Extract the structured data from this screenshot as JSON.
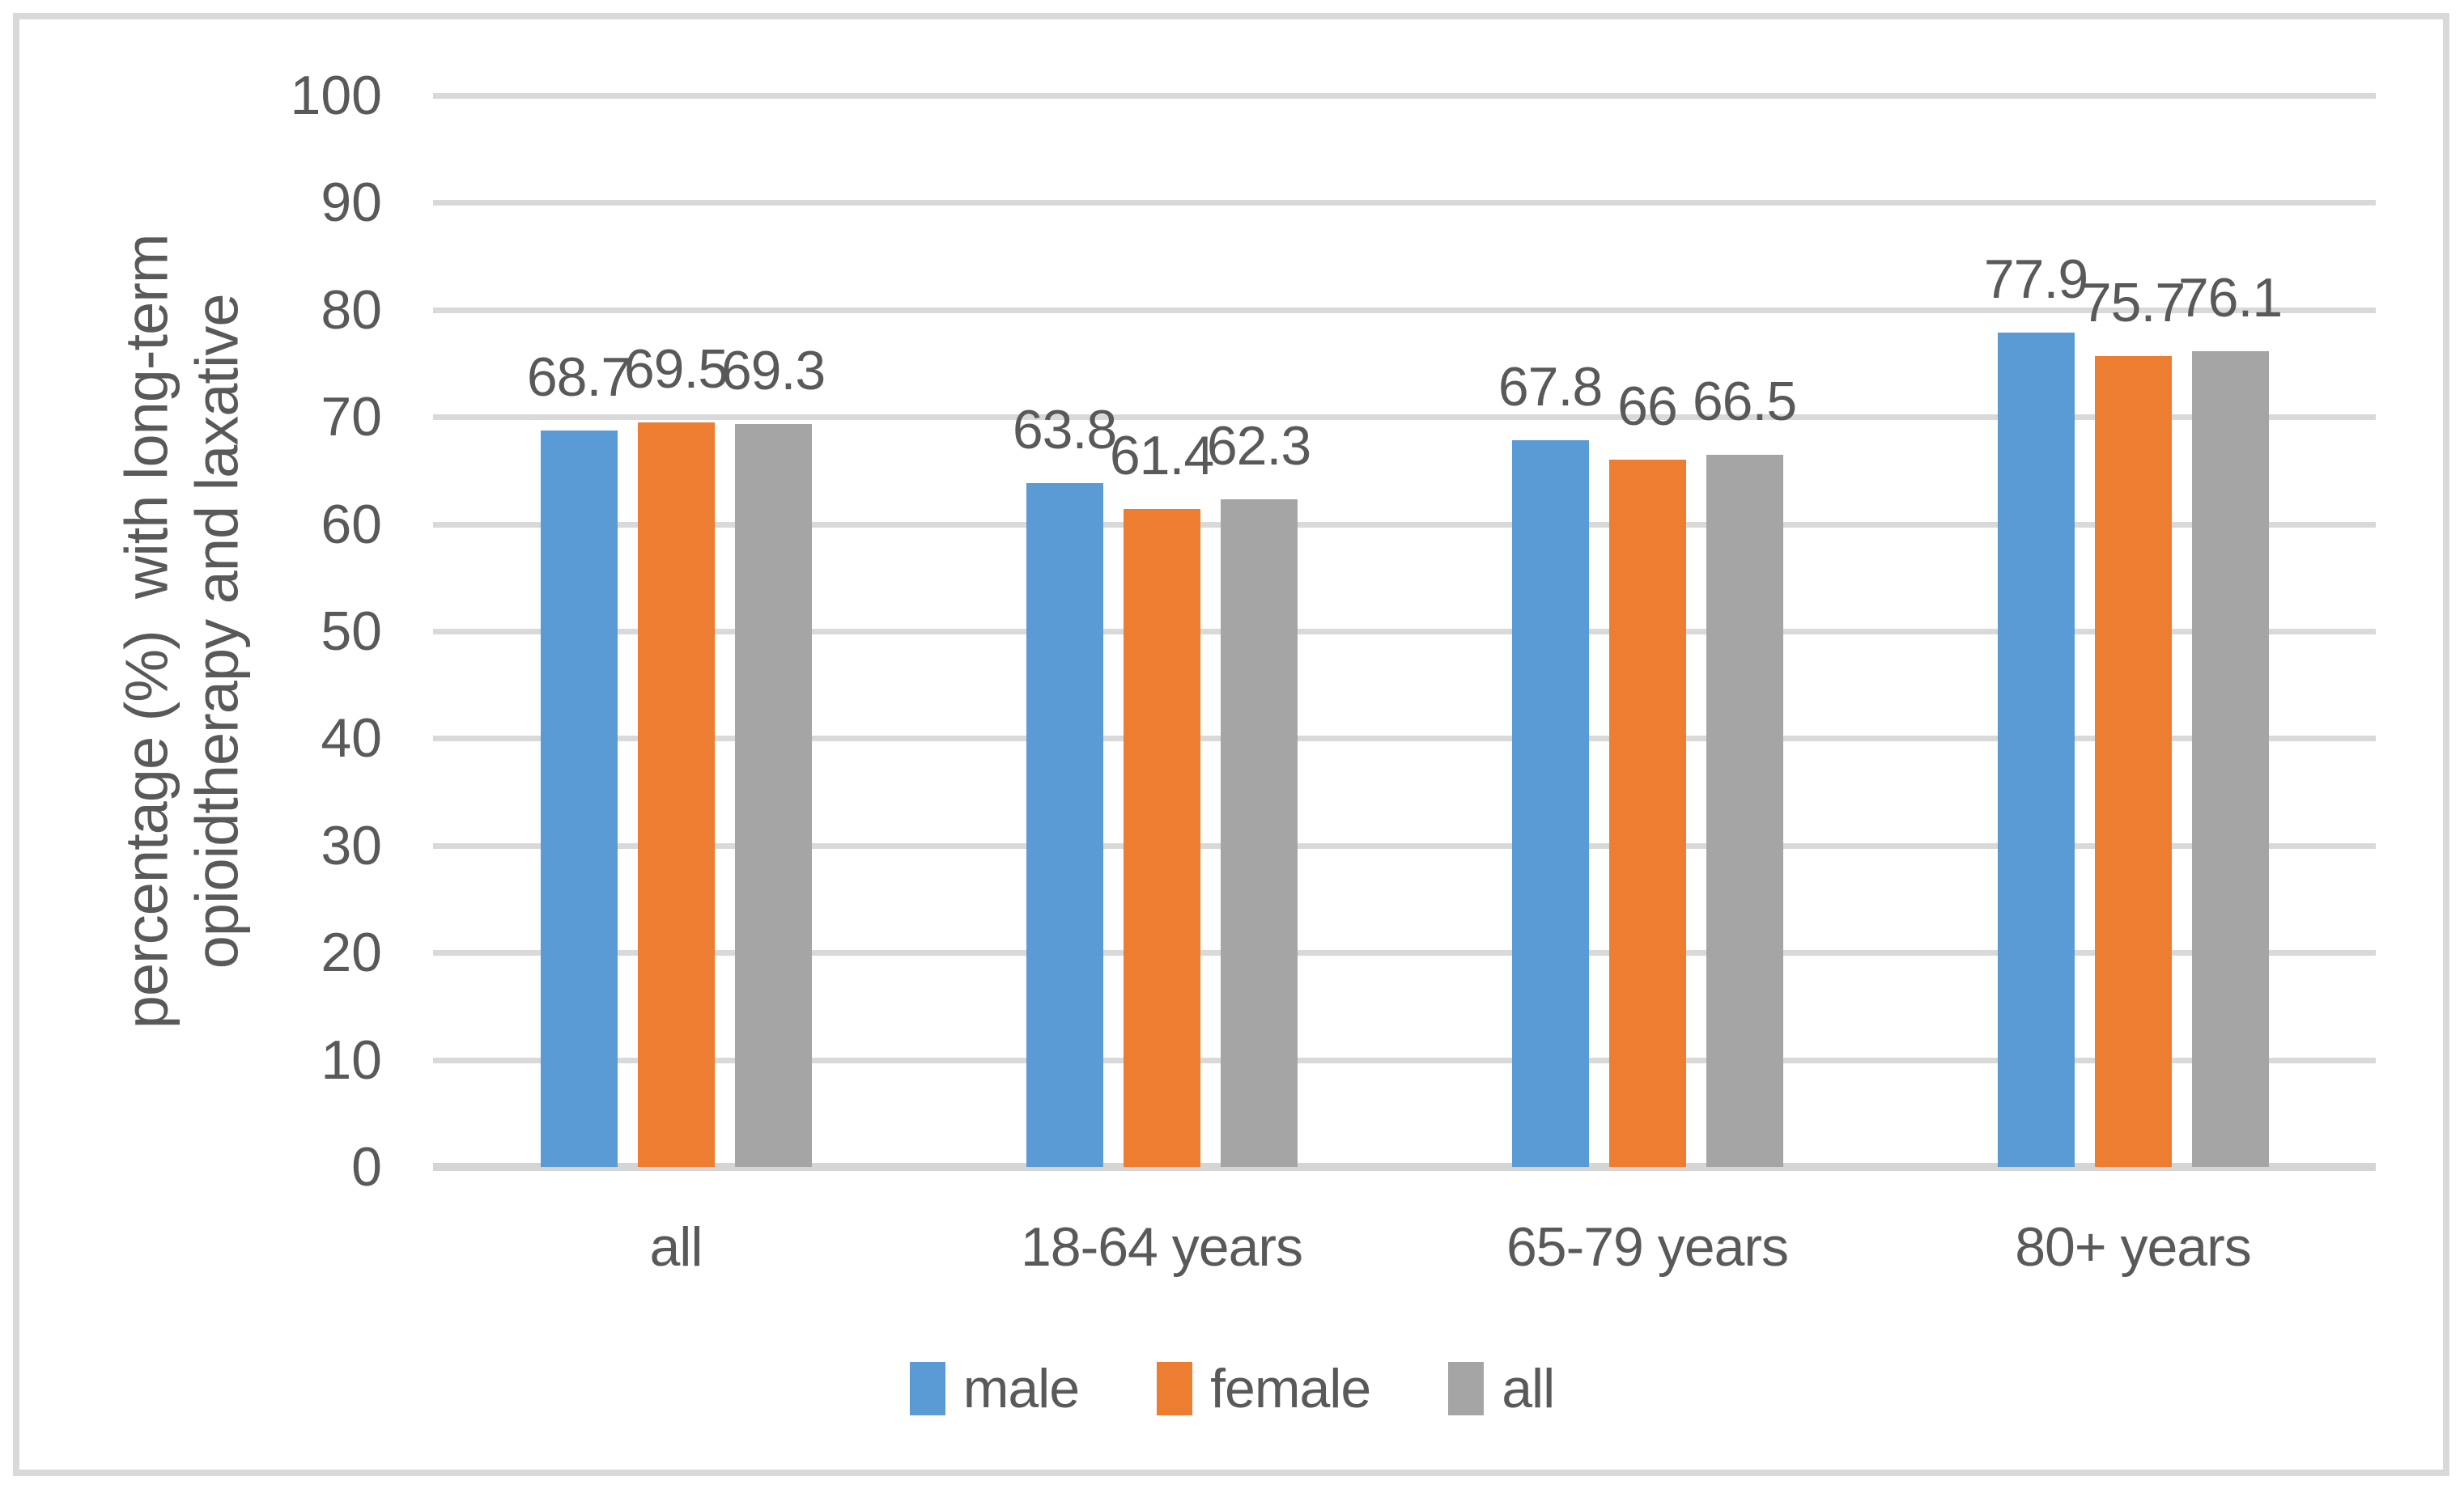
{
  "chart_data": {
    "type": "bar",
    "title": "",
    "categories": [
      "all",
      "18-64 years",
      "65-79 years",
      "80+ years"
    ],
    "series": [
      {
        "name": "male",
        "color": "#5B9BD5",
        "values": [
          68.7,
          63.8,
          67.8,
          77.9
        ]
      },
      {
        "name": "female",
        "color": "#ED7D31",
        "values": [
          69.5,
          61.4,
          66,
          75.7
        ]
      },
      {
        "name": "all",
        "color": "#A5A5A5",
        "values": [
          69.3,
          62.3,
          66.5,
          76.1
        ]
      }
    ],
    "xlabel": "",
    "ylabel_line1": "percentage (%)  with long-term",
    "ylabel_line2": "opioidtherapy and laxative",
    "ylim": [
      0,
      100
    ],
    "yticks": [
      0,
      10,
      20,
      30,
      40,
      50,
      60,
      70,
      80,
      90,
      100
    ],
    "grid": "horizontal",
    "legend_position": "bottom",
    "data_labels_shown": true,
    "colors": {
      "text": "#595959",
      "gridline": "#D9D9D9",
      "axis_line": "#D5D5D5",
      "frame_border": "#D9D9D9",
      "background": "#FFFFFF"
    }
  }
}
